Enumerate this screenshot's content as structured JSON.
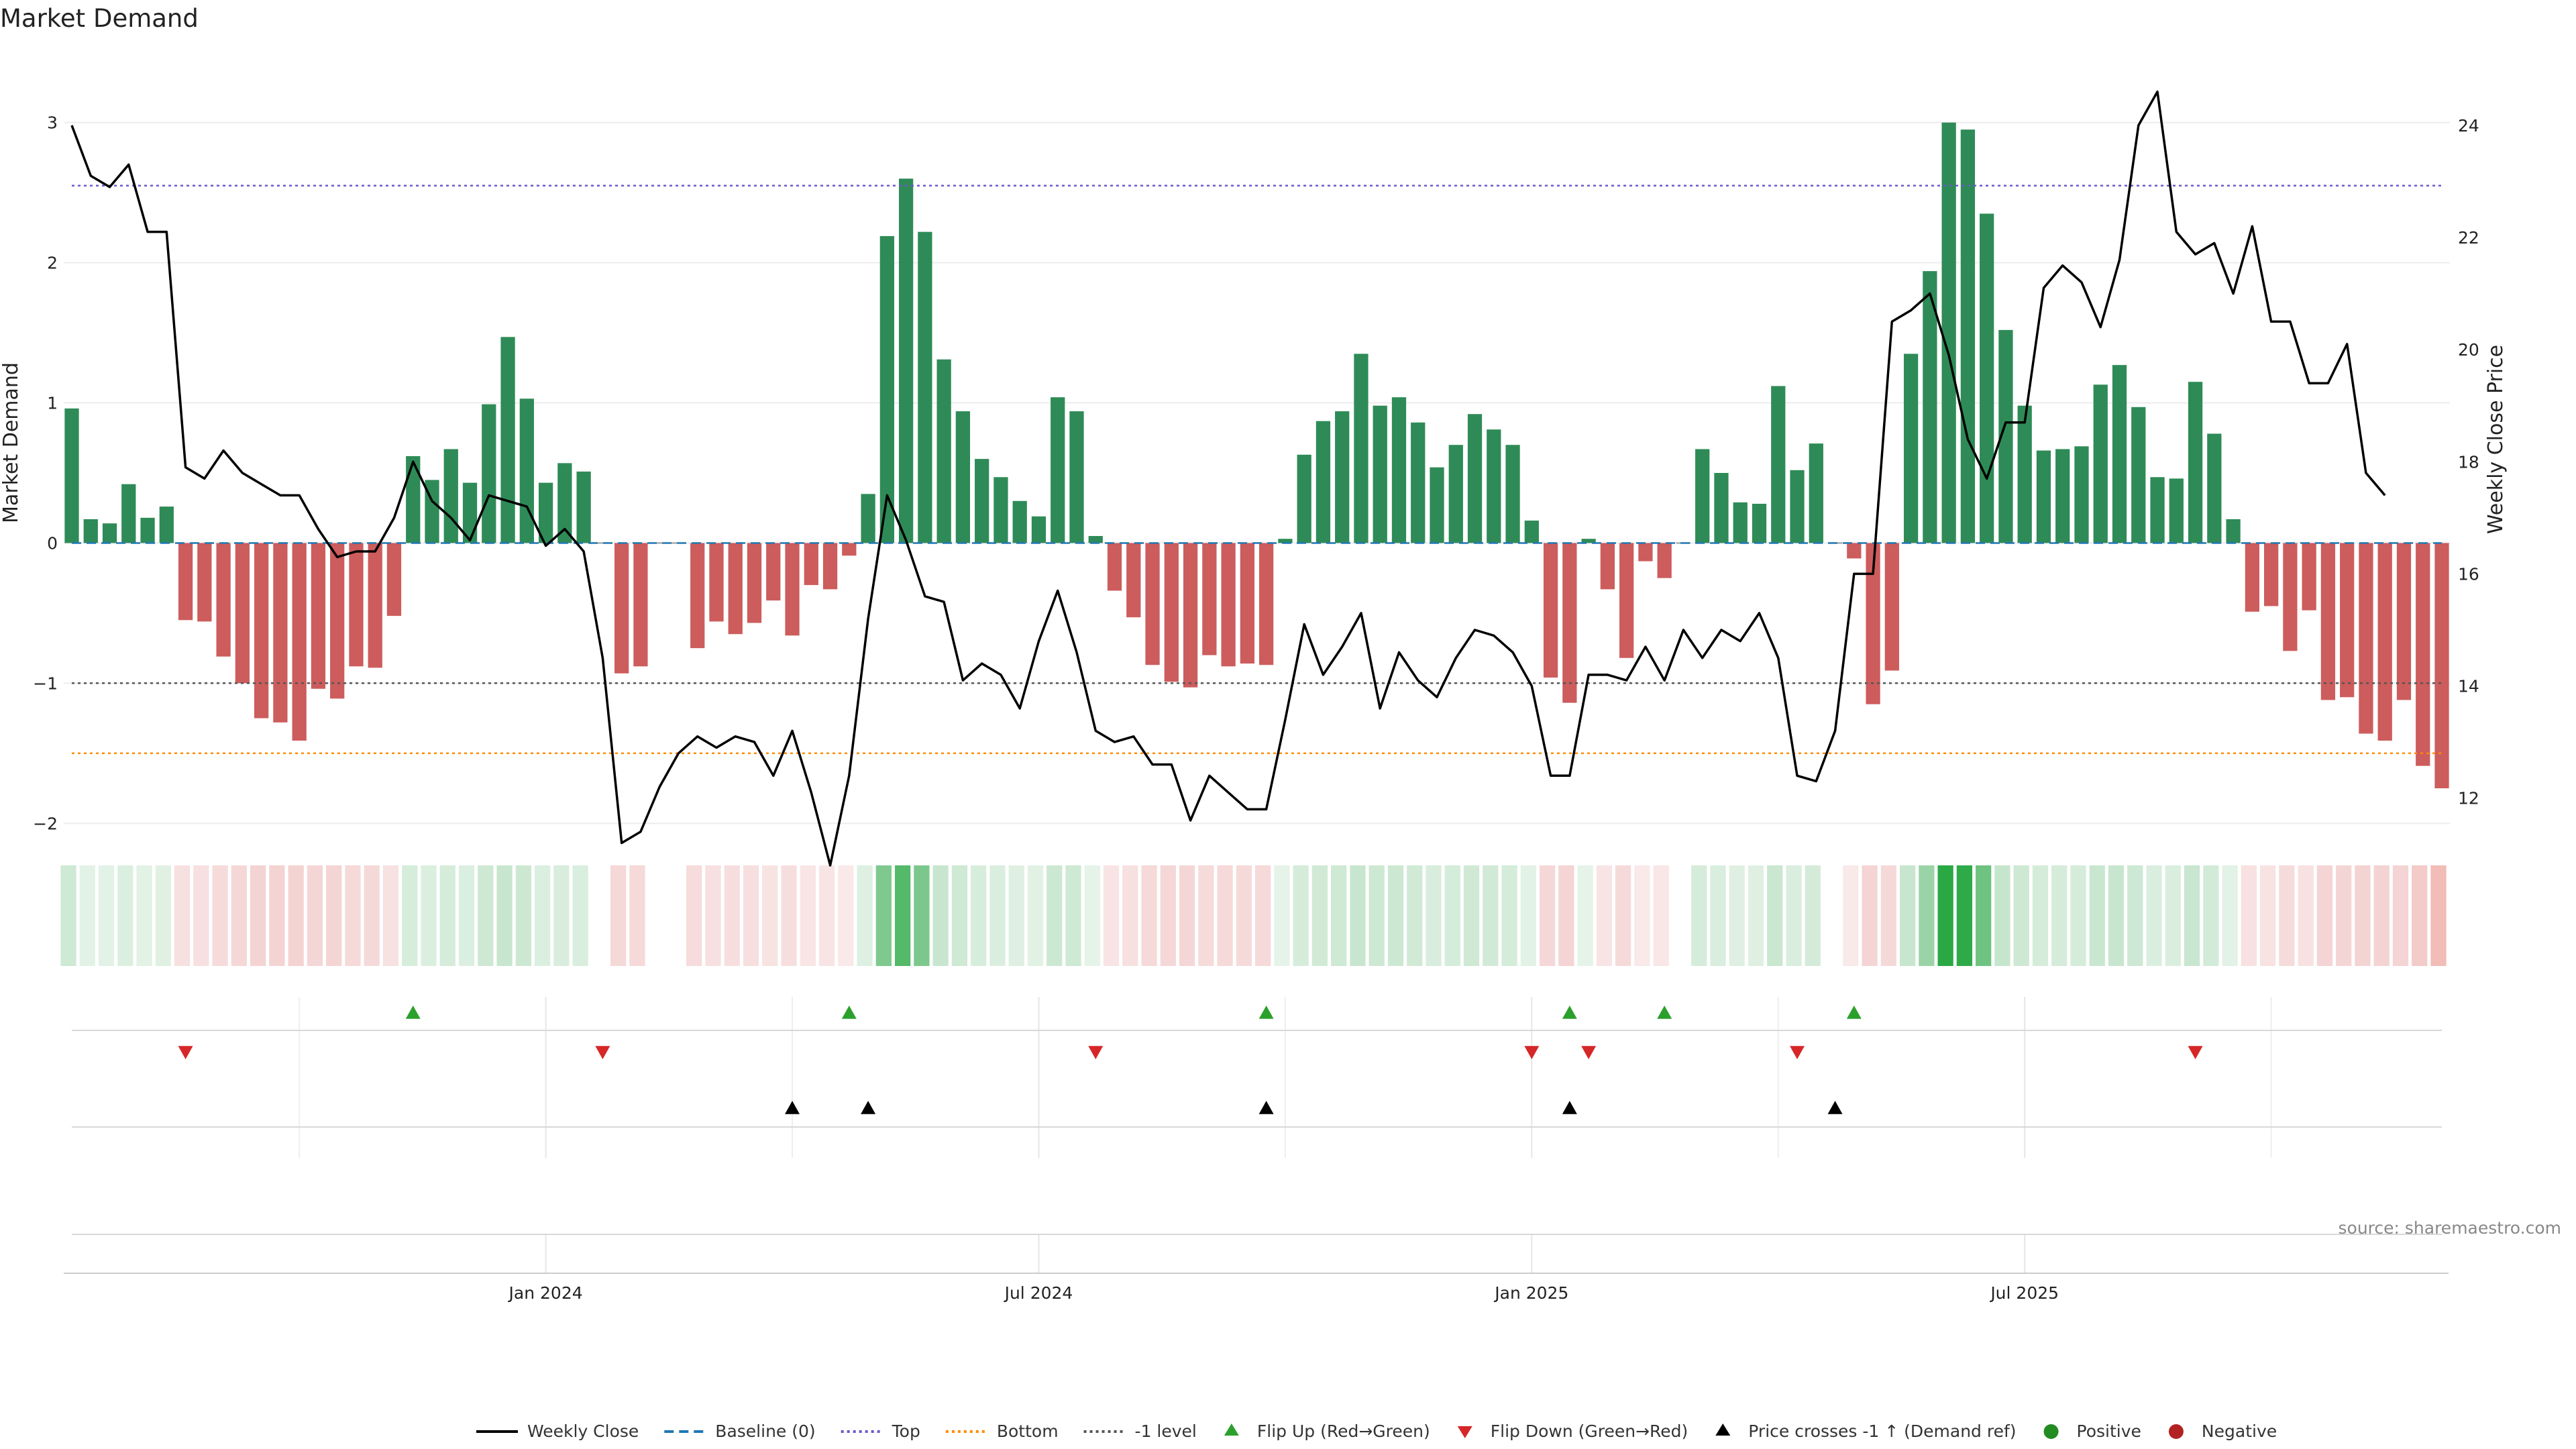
{
  "chart_data": {
    "type": "bar",
    "title": "Market Demand",
    "ylabel_left": "Market Demand",
    "ylabel_right": "Weekly Close Price",
    "source": "source: sharemaestro.com",
    "ylim_left": [
      -2.3,
      3.3
    ],
    "ylim_right": [
      10.8,
      24.8
    ],
    "yticks_left": [
      {
        "value": 3,
        "label": "3"
      },
      {
        "value": 2,
        "label": "2"
      },
      {
        "value": 1,
        "label": "1"
      },
      {
        "value": 0,
        "label": "0"
      },
      {
        "value": -1,
        "label": "−1"
      },
      {
        "value": -2,
        "label": "−2"
      }
    ],
    "yticks_right": [
      {
        "value": 24,
        "label": "24"
      },
      {
        "value": 22,
        "label": "22"
      },
      {
        "value": 20,
        "label": "20"
      },
      {
        "value": 18,
        "label": "18"
      },
      {
        "value": 16,
        "label": "16"
      },
      {
        "value": 14,
        "label": "14"
      },
      {
        "value": 12,
        "label": "12"
      }
    ],
    "xticks": [
      {
        "week": 25,
        "label": "Jan 2024"
      },
      {
        "week": 51,
        "label": "Jul 2024"
      },
      {
        "week": 77,
        "label": "Jan 2025"
      },
      {
        "week": 103,
        "label": "Jul 2025"
      }
    ],
    "reference_lines": {
      "top": 2.55,
      "bottom": -1.5,
      "minus_one": -1
    },
    "series": [
      {
        "name": "Market Demand",
        "values": [
          0.96,
          0.17,
          0.14,
          0.42,
          0.18,
          0.26,
          -0.55,
          -0.56,
          -0.81,
          -1.0,
          -1.25,
          -1.28,
          -1.41,
          -1.04,
          -1.11,
          -0.88,
          -0.89,
          -0.52,
          0.62,
          0.45,
          0.67,
          0.43,
          0.99,
          1.47,
          1.03,
          0.43,
          0.57,
          0.51,
          0.0,
          -0.93,
          -0.88,
          0.0,
          0.0,
          -0.75,
          -0.56,
          -0.65,
          -0.57,
          -0.41,
          -0.66,
          -0.3,
          -0.33,
          -0.09,
          0.35,
          2.19,
          2.6,
          2.22,
          1.31,
          0.94,
          0.6,
          0.47,
          0.3,
          0.19,
          1.04,
          0.94,
          0.05,
          -0.34,
          -0.53,
          -0.87,
          -0.99,
          -1.03,
          -0.8,
          -0.88,
          -0.86,
          -0.87,
          0.03,
          0.63,
          0.87,
          0.94,
          1.35,
          0.98,
          1.04,
          0.86,
          0.54,
          0.7,
          0.92,
          0.81,
          0.7,
          0.16,
          -0.96,
          -1.14,
          0.03,
          -0.33,
          -0.82,
          -0.13,
          -0.25,
          0.0,
          0.67,
          0.5,
          0.29,
          0.28,
          1.12,
          0.52,
          0.71,
          0.0,
          -0.11,
          -1.15,
          -0.91,
          1.35,
          1.94,
          3.0,
          2.95,
          2.35,
          1.52,
          0.98,
          0.66,
          0.67,
          0.69,
          1.13,
          1.27,
          0.97,
          0.47,
          0.46,
          1.15,
          0.78,
          0.17,
          -0.49,
          -0.45,
          -0.77,
          -0.48,
          -1.12,
          -1.1,
          -1.36,
          -1.41,
          -1.12,
          -1.59,
          -1.75
        ]
      },
      {
        "name": "Weekly Close",
        "values": [
          24.0,
          23.1,
          22.9,
          23.3,
          22.1,
          22.1,
          17.9,
          17.7,
          18.2,
          17.8,
          17.6,
          17.4,
          17.4,
          16.8,
          16.3,
          16.4,
          16.4,
          17.0,
          18.0,
          17.3,
          17.0,
          16.6,
          17.4,
          17.3,
          17.2,
          16.5,
          16.8,
          16.4,
          14.5,
          11.2,
          11.4,
          12.2,
          12.8,
          13.1,
          12.9,
          13.1,
          13.0,
          12.4,
          13.2,
          12.1,
          10.8,
          12.4,
          15.2,
          17.4,
          16.6,
          15.6,
          15.5,
          14.1,
          14.4,
          14.2,
          13.6,
          14.8,
          15.7,
          14.6,
          13.2,
          13.0,
          13.1,
          12.6,
          12.6,
          11.6,
          12.4,
          12.1,
          11.8,
          11.8,
          13.4,
          15.1,
          14.2,
          14.7,
          15.3,
          13.6,
          14.6,
          14.1,
          13.8,
          14.5,
          15.0,
          14.9,
          14.6,
          14.0,
          12.4,
          12.4,
          14.2,
          14.2,
          14.1,
          14.7,
          14.1,
          15.0,
          14.5,
          15.0,
          14.8,
          15.3,
          14.5,
          12.4,
          12.3,
          13.2,
          16.0,
          16.0,
          20.5,
          20.7,
          21.0,
          19.9,
          18.4,
          17.7,
          18.7,
          18.7,
          21.1,
          21.5,
          21.2,
          20.4,
          21.6,
          24.0,
          24.6,
          22.1,
          21.7,
          21.9,
          21.0,
          22.2,
          20.5,
          20.5,
          19.4,
          19.4,
          20.1,
          17.8,
          17.4
        ]
      }
    ],
    "events": {
      "flip_up_weeks": [
        18,
        41,
        63,
        79,
        84,
        94
      ],
      "flip_down_weeks": [
        6,
        28,
        54,
        77,
        80,
        91,
        112
      ],
      "price_cross_weeks": [
        38,
        42,
        63,
        79,
        93
      ]
    },
    "heat_colors": [
      "#e6462b",
      "#f4d3d3",
      "#ffffff",
      "#c8e6cf",
      "#2aa844"
    ],
    "bar_colors": {
      "positive": "#2e8b57",
      "negative": "#cd5c5c"
    },
    "legend": [
      {
        "key": "line-black",
        "label": "Weekly Close",
        "color": "#000000"
      },
      {
        "key": "line-dash",
        "label": "Baseline (0)",
        "color": "#1f77b4"
      },
      {
        "key": "line-dot",
        "label": "Top",
        "color": "#6a5acd"
      },
      {
        "key": "line-dot",
        "label": "Bottom",
        "color": "#ff8c00"
      },
      {
        "key": "line-dot",
        "label": "-1 level",
        "color": "#555555"
      },
      {
        "key": "tri-up",
        "label": "Flip Up (Red→Green)",
        "color": "#2ca02c"
      },
      {
        "key": "tri-down",
        "label": "Flip Down (Green→Red)",
        "color": "#d62728"
      },
      {
        "key": "tri-up",
        "label": "Price crosses -1 ↑ (Demand ref)",
        "color": "#000000"
      },
      {
        "key": "dot",
        "label": "Positive",
        "color": "#228b22"
      },
      {
        "key": "dot",
        "label": "Negative",
        "color": "#b22222"
      }
    ]
  }
}
